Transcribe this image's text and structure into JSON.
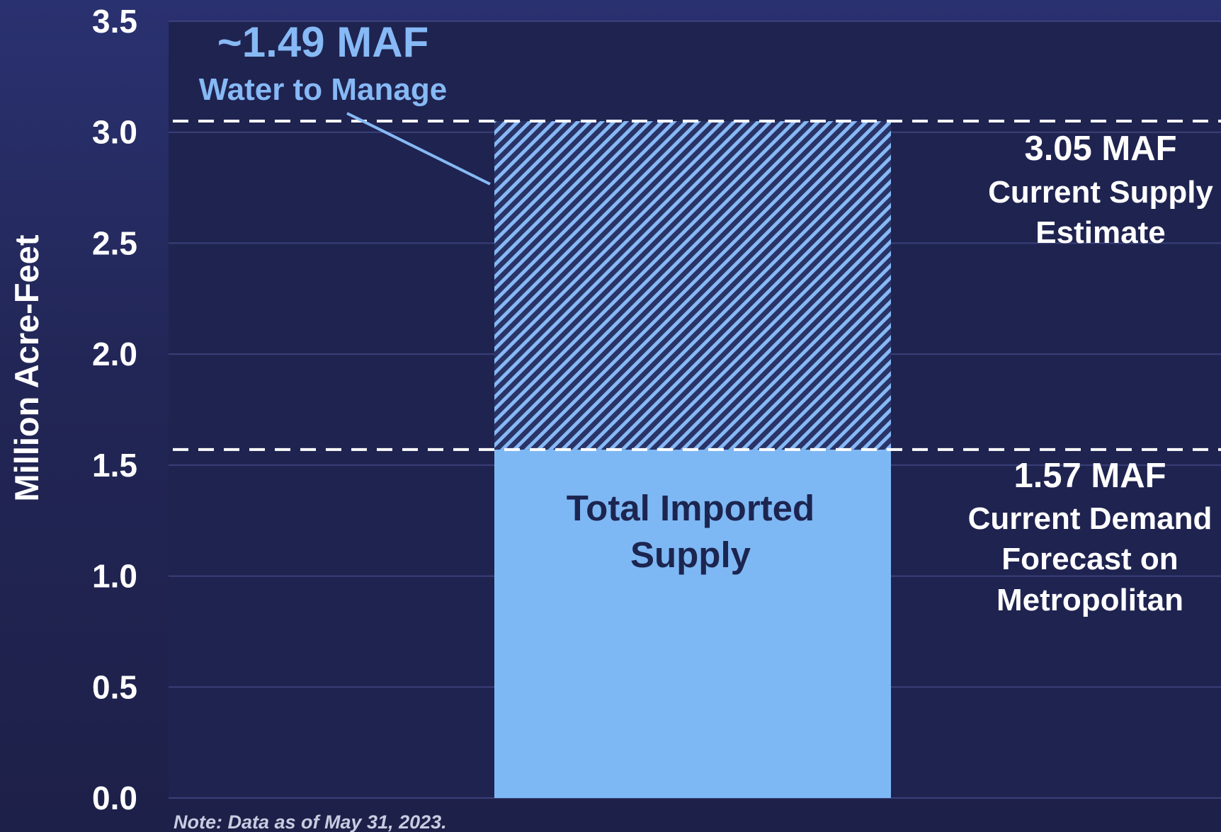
{
  "chart_data": {
    "type": "bar",
    "ylabel": "Million Acre-Feet",
    "ylim": [
      0,
      3.5
    ],
    "y_ticks": [
      "0.0",
      "0.5",
      "1.0",
      "1.5",
      "2.0",
      "2.5",
      "3.0",
      "3.5"
    ],
    "grid": true,
    "categories": [
      ""
    ],
    "series": [
      {
        "name": "Total Imported Supply",
        "label": [
          "Total Imported",
          "Supply"
        ],
        "values": [
          1.57
        ],
        "color": "#7eb8f4",
        "pattern": "solid"
      },
      {
        "name": "~1.49 MAF",
        "values": [
          1.48
        ],
        "color": "#7eb8f4",
        "pattern": "hatched"
      }
    ],
    "reference_lines": [
      {
        "value": 3.05,
        "style": "dashed",
        "label_value": "3.05 MAF",
        "label_lines": [
          "Current Supply",
          "Estimate"
        ]
      },
      {
        "value": 1.57,
        "style": "dashed",
        "label_value": "1.57 MAF",
        "label_lines": [
          "Current Demand",
          "Forecast on",
          "Metropolitan"
        ]
      }
    ],
    "annotation": {
      "value": "~1.49 MAF",
      "text": "Water to Manage",
      "color": "#86b9f5"
    },
    "note": "Note: Data as of May 31, 2023."
  },
  "colors": {
    "background_top": "#2a3170",
    "background_bottom": "#1d2048",
    "plot_area": "#1f2350",
    "grid": "#3a4178",
    "bar": "#7eb8f4",
    "bar_text": "#1c2550",
    "text": "#ffffff",
    "accent": "#86b9f5"
  }
}
